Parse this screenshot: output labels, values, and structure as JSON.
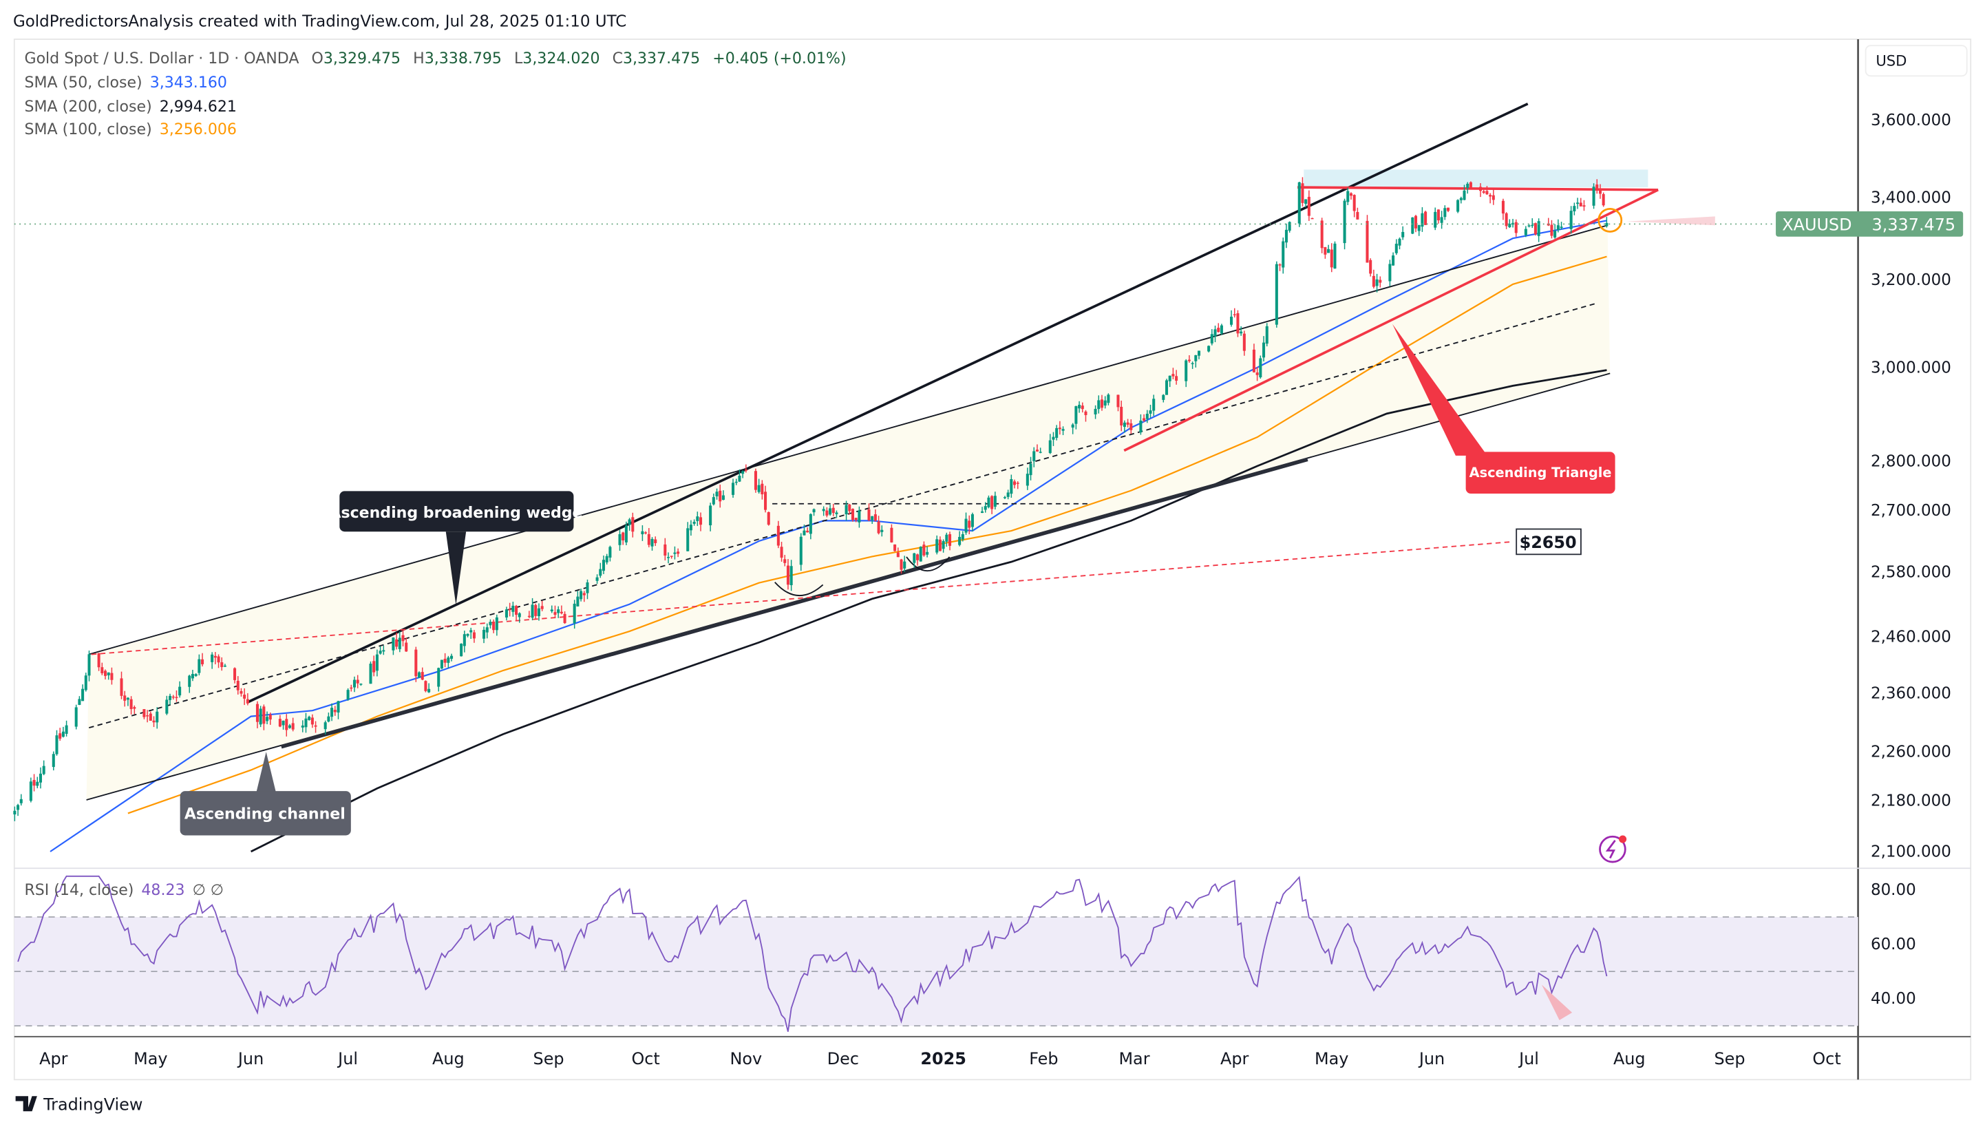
{
  "header": {
    "attribution": "GoldPredictorsAnalysis created with TradingView.com, Jul 28, 2025 01:10 UTC"
  },
  "legend": {
    "symbol": "Gold Spot / U.S. Dollar · 1D · OANDA",
    "open_label": "O",
    "open": "3,329.475",
    "high_label": "H",
    "high": "3,338.795",
    "low_label": "L",
    "low": "3,324.020",
    "close_label": "C",
    "close": "3,337.475",
    "change": "+0.405 (+0.01%)",
    "sma50_label": "SMA (50, close)",
    "sma50": "3,343.160",
    "sma200_label": "SMA (200, close)",
    "sma200": "2,994.621",
    "sma100_label": "SMA (100, close)",
    "sma100": "3,256.006"
  },
  "price_axis": {
    "currency": "USD",
    "ticks": [
      "3,600.000",
      "3,400.000",
      "3,200.000",
      "3,000.000",
      "2,800.000",
      "2,700.000",
      "2,580.000",
      "2,460.000",
      "2,360.000",
      "2,260.000",
      "2,180.000",
      "2,100.000"
    ],
    "last_symbol": "XAUUSD",
    "last_price": "3,337.475"
  },
  "rsi": {
    "label": "RSI (14, close)",
    "value": "48.23",
    "extra": "∅ ∅",
    "ticks": [
      "80.00",
      "60.00",
      "40.00"
    ]
  },
  "time_axis": [
    "Apr",
    "May",
    "Jun",
    "Jul",
    "Aug",
    "Sep",
    "Oct",
    "Nov",
    "Dec",
    "2025",
    "Feb",
    "Mar",
    "Apr",
    "May",
    "Jun",
    "Jul",
    "Aug",
    "Sep",
    "Oct"
  ],
  "annotations": {
    "wedge": "Ascending broadening wedge",
    "channel": "Ascending channel",
    "triangle": "Ascending Triangle",
    "level": "$2650"
  },
  "footer": {
    "brand": "TradingView"
  },
  "colors": {
    "up": "#089981",
    "down": "#f23645",
    "sma50": "#2962ff",
    "sma100": "#ff9800",
    "sma200": "#131722",
    "rsi": "#7e57c2",
    "last_price": "#6aa882",
    "triangle": "#f23645"
  },
  "chart_data": {
    "type": "candlestick",
    "title": "Gold Spot / U.S. Dollar · 1D · OANDA",
    "scale": "log",
    "ylim": [
      2100,
      3650
    ],
    "price_path": [
      [
        "2024-03-20",
        2160
      ],
      [
        "2024-04-08",
        2330
      ],
      [
        "2024-04-12",
        2420
      ],
      [
        "2024-05-01",
        2310
      ],
      [
        "2024-05-20",
        2440
      ],
      [
        "2024-06-01",
        2330
      ],
      [
        "2024-06-10",
        2300
      ],
      [
        "2024-06-25",
        2320
      ],
      [
        "2024-07-17",
        2460
      ],
      [
        "2024-07-25",
        2370
      ],
      [
        "2024-08-02",
        2440
      ],
      [
        "2024-08-23",
        2510
      ],
      [
        "2024-09-06",
        2500
      ],
      [
        "2024-09-26",
        2670
      ],
      [
        "2024-10-09",
        2610
      ],
      [
        "2024-10-30",
        2780
      ],
      [
        "2024-11-05",
        2740
      ],
      [
        "2024-11-14",
        2565
      ],
      [
        "2024-11-22",
        2710
      ],
      [
        "2024-12-10",
        2690
      ],
      [
        "2024-12-19",
        2600
      ],
      [
        "2025-01-03",
        2640
      ],
      [
        "2025-01-22",
        2755
      ],
      [
        "2025-02-11",
        2900
      ],
      [
        "2025-02-21",
        2935
      ],
      [
        "2025-02-28",
        2860
      ],
      [
        "2025-03-14",
        2985
      ],
      [
        "2025-03-31",
        3120
      ],
      [
        "2025-04-08",
        2980
      ],
      [
        "2025-04-14",
        3220
      ],
      [
        "2025-04-21",
        3420
      ],
      [
        "2025-05-01",
        3240
      ],
      [
        "2025-05-06",
        3430
      ],
      [
        "2025-05-14",
        3180
      ],
      [
        "2025-05-26",
        3340
      ],
      [
        "2025-06-06",
        3370
      ],
      [
        "2025-06-13",
        3430
      ],
      [
        "2025-06-26",
        3330
      ],
      [
        "2025-07-10",
        3320
      ],
      [
        "2025-07-22",
        3430
      ],
      [
        "2025-07-25",
        3337.475
      ]
    ],
    "sma50": [
      [
        "2024-03-31",
        2100
      ],
      [
        "2024-06-01",
        2320
      ],
      [
        "2024-06-20",
        2330
      ],
      [
        "2024-07-30",
        2400
      ],
      [
        "2024-09-26",
        2520
      ],
      [
        "2024-11-05",
        2640
      ],
      [
        "2024-11-25",
        2680
      ],
      [
        "2024-12-10",
        2680
      ],
      [
        "2025-01-10",
        2660
      ],
      [
        "2025-02-28",
        2870
      ],
      [
        "2025-04-08",
        3000
      ],
      [
        "2025-05-18",
        3150
      ],
      [
        "2025-06-26",
        3300
      ],
      [
        "2025-07-25",
        3343.16
      ]
    ],
    "sma100": [
      [
        "2024-04-24",
        2160
      ],
      [
        "2024-06-01",
        2230
      ],
      [
        "2024-07-10",
        2320
      ],
      [
        "2024-08-18",
        2400
      ],
      [
        "2024-09-26",
        2470
      ],
      [
        "2024-11-05",
        2560
      ],
      [
        "2024-12-10",
        2610
      ],
      [
        "2025-01-22",
        2660
      ],
      [
        "2025-02-28",
        2740
      ],
      [
        "2025-04-08",
        2850
      ],
      [
        "2025-05-18",
        3020
      ],
      [
        "2025-06-26",
        3190
      ],
      [
        "2025-07-25",
        3256.006
      ]
    ],
    "sma200": [
      [
        "2024-06-01",
        2100
      ],
      [
        "2024-07-10",
        2200
      ],
      [
        "2024-08-18",
        2290
      ],
      [
        "2024-09-26",
        2370
      ],
      [
        "2024-11-05",
        2450
      ],
      [
        "2024-12-10",
        2530
      ],
      [
        "2025-01-22",
        2600
      ],
      [
        "2025-02-28",
        2680
      ],
      [
        "2025-04-08",
        2790
      ],
      [
        "2025-05-18",
        2900
      ],
      [
        "2025-06-26",
        2960
      ],
      [
        "2025-07-25",
        2994.621
      ]
    ],
    "rsi_last": 48.23,
    "rsi_ylim": [
      25,
      85
    ],
    "rsi_levels": [
      70,
      50,
      30
    ]
  }
}
